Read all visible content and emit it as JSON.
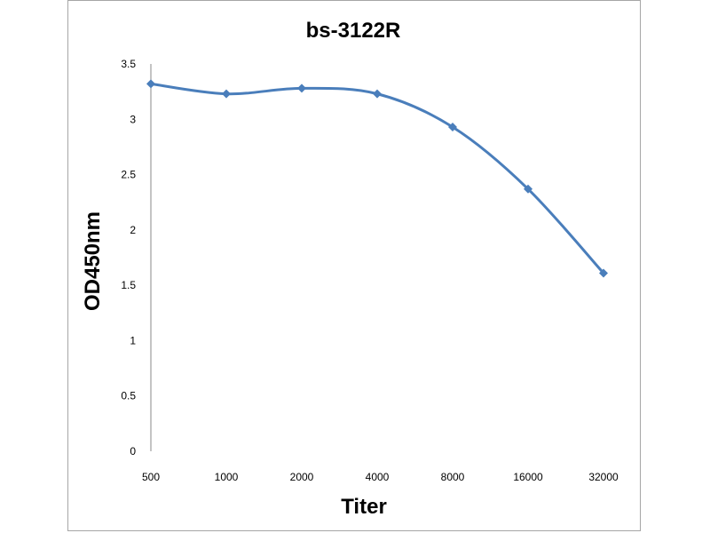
{
  "chart_data": {
    "type": "line",
    "title": "bs-3122R",
    "xlabel": "Titer",
    "ylabel": "OD450nm",
    "categories": [
      "500",
      "1000",
      "2000",
      "4000",
      "8000",
      "16000",
      "32000"
    ],
    "series": [
      {
        "values": [
          3.32,
          3.23,
          3.28,
          3.23,
          2.93,
          2.37,
          1.61
        ]
      }
    ],
    "yticks": [
      "0",
      "0.5",
      "1",
      "1.5",
      "2",
      "2.5",
      "3",
      "3.5"
    ],
    "ylim": [
      0,
      3.5
    ],
    "grid": false,
    "legend": "none",
    "line_color": "#4a7ebb",
    "marker": "diamond"
  }
}
